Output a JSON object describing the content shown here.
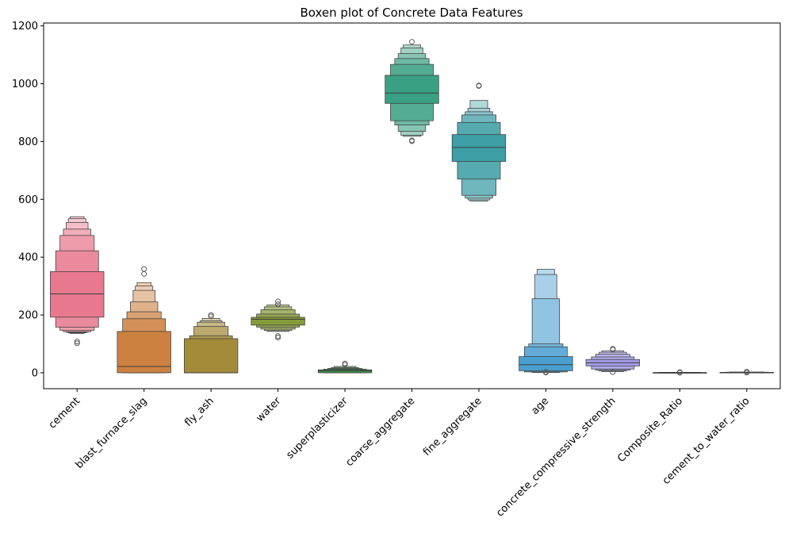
{
  "chart_data": {
    "type": "boxen",
    "title": "Boxen plot of Concrete Data Features",
    "xlabel": "",
    "ylabel": "",
    "ylim": [
      -55,
      1210
    ],
    "yticks": [
      0,
      200,
      400,
      600,
      800,
      1000,
      1200
    ],
    "grid": false,
    "categories": [
      "cement",
      "blast_furnace_slag",
      "fly_ash",
      "water",
      "superplasticizer",
      "coarse_aggregate",
      "fine_aggregate",
      "age",
      "concrete_compressive_strength",
      "Composite_Ratio",
      "cement_to_water_ratio"
    ],
    "series": [
      {
        "color": "#e8788d",
        "median": 272.9,
        "levels": [
          [
            192.4,
            350
          ],
          [
            158,
            422
          ],
          [
            147,
            475
          ],
          [
            142,
            497
          ],
          [
            140,
            520
          ],
          [
            138,
            533
          ],
          [
            136,
            540
          ]
        ],
        "outliers": [
          102,
          108
        ]
      },
      {
        "color": "#cc8140",
        "median": 22,
        "levels": [
          [
            0,
            143
          ],
          [
            0,
            187
          ],
          [
            0,
            211
          ],
          [
            0,
            245
          ],
          [
            0,
            285
          ],
          [
            0,
            300
          ],
          [
            0,
            312
          ]
        ],
        "outliers": [
          342,
          359
        ]
      },
      {
        "color": "#a38b3a",
        "median": 0,
        "levels": [
          [
            0,
            118
          ],
          [
            0,
            128
          ],
          [
            0,
            160
          ],
          [
            0,
            175
          ],
          [
            0,
            180
          ],
          [
            0,
            188
          ]
        ],
        "outliers": [
          195,
          200
        ]
      },
      {
        "color": "#859a38",
        "median": 185,
        "levels": [
          [
            164.9,
            192
          ],
          [
            158,
            203
          ],
          [
            151,
            218
          ],
          [
            146,
            228
          ],
          [
            143,
            235
          ]
        ],
        "outliers": [
          122,
          127,
          237,
          247
        ]
      },
      {
        "color": "#3f9a4a",
        "median": 6.4,
        "levels": [
          [
            0,
            10.2
          ],
          [
            0,
            12.5
          ],
          [
            0,
            15
          ],
          [
            0,
            18
          ],
          [
            0,
            22
          ]
        ],
        "outliers": [
          28,
          32
        ]
      },
      {
        "color": "#3aa083",
        "median": 968,
        "levels": [
          [
            932,
            1029
          ],
          [
            872,
            1067
          ],
          [
            857,
            1087
          ],
          [
            835,
            1104
          ],
          [
            822,
            1124
          ],
          [
            818,
            1134
          ]
        ],
        "outliers": [
          801,
          804,
          1145
        ]
      },
      {
        "color": "#3d9ea5",
        "median": 779.5,
        "levels": [
          [
            731,
            824
          ],
          [
            670,
            866
          ],
          [
            614,
            892
          ],
          [
            604,
            903
          ],
          [
            598,
            915
          ],
          [
            594,
            942
          ]
        ],
        "outliers": [
          992,
          994
        ]
      },
      {
        "color": "#4a9fd1",
        "median": 28,
        "levels": [
          [
            7,
            56
          ],
          [
            3,
            90
          ],
          [
            3,
            100
          ],
          [
            1,
            256
          ],
          [
            1,
            340
          ],
          [
            1,
            358
          ]
        ],
        "outliers": [
          1,
          3
        ]
      },
      {
        "color": "#a39ce6",
        "median": 34.4,
        "levels": [
          [
            23.7,
            46.1
          ],
          [
            13,
            55
          ],
          [
            9,
            64
          ],
          [
            6,
            71
          ],
          [
            4,
            76
          ]
        ],
        "outliers": [
          2.3,
          80,
          83
        ]
      },
      {
        "color": "#e37fe0",
        "median": 0.6,
        "levels": [
          [
            0.4,
            0.8
          ],
          [
            0.3,
            1.2
          ],
          [
            0.2,
            1.6
          ]
        ],
        "outliers": [
          0.2,
          2.2
        ]
      },
      {
        "color": "#e87eb4",
        "median": 1.27,
        "levels": [
          [
            1.0,
            1.6
          ],
          [
            0.7,
            2.0
          ],
          [
            0.5,
            2.6
          ]
        ],
        "outliers": [
          0.4,
          4
        ]
      }
    ]
  }
}
